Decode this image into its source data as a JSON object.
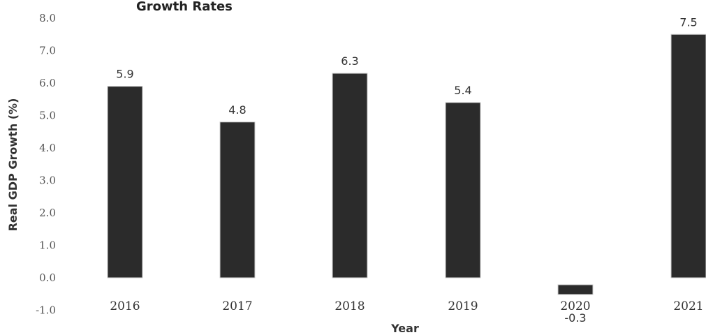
{
  "chart_data": {
    "type": "bar",
    "title": "Growth Rates",
    "xlabel": "Year",
    "ylabel": "Real GDP Growth (%)",
    "categories": [
      "2016",
      "2017",
      "2018",
      "2019",
      "2020",
      "2021"
    ],
    "values": [
      5.9,
      4.8,
      6.3,
      5.4,
      -0.3,
      7.5
    ],
    "data_labels": [
      "5.9",
      "4.8",
      "6.3",
      "5.4",
      "-0.3",
      "7.5"
    ],
    "ylim": [
      -1.0,
      8.0
    ],
    "yticks": [
      "-1.0",
      "0.0",
      "1.0",
      "2.0",
      "3.0",
      "4.0",
      "5.0",
      "6.0",
      "7.0",
      "8.0"
    ],
    "grid": false,
    "legend": "none",
    "bar_color": "#2b2b2b"
  }
}
